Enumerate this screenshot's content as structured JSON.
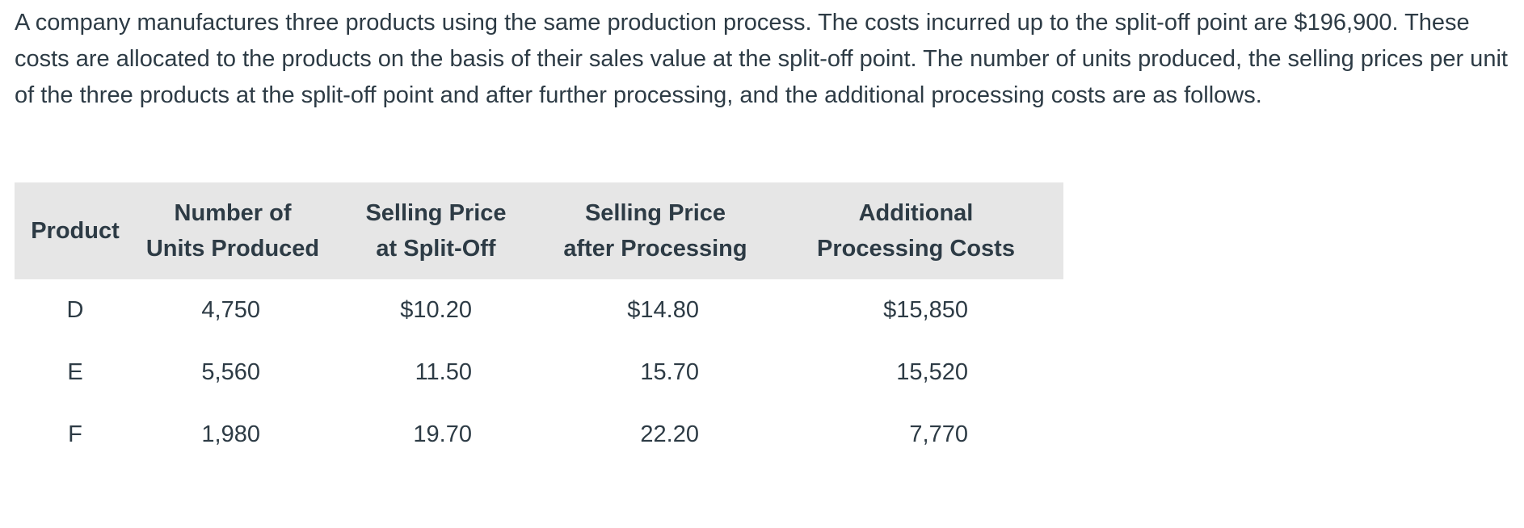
{
  "intro": {
    "text": "A company manufactures three products using the same production process. The costs incurred up to the split-off point are $196,900. These costs are allocated to the products on the basis of their sales value at the split-off point. The number of units produced, the selling prices per unit of the three products at the split-off point and after further processing, and the additional processing costs are as follows."
  },
  "table": {
    "headers": [
      {
        "line1": "",
        "line2": "Product"
      },
      {
        "line1": "Number of",
        "line2": "Units Produced"
      },
      {
        "line1": "Selling Price",
        "line2": "at Split-Off"
      },
      {
        "line1": "Selling Price",
        "line2": "after Processing"
      },
      {
        "line1": "Additional",
        "line2": "Processing Costs"
      }
    ],
    "rows": [
      {
        "product": "D",
        "units": "4,750",
        "split_off": "$10.20",
        "after": "$14.80",
        "additional": "$15,850"
      },
      {
        "product": "E",
        "units": "5,560",
        "split_off": "11.50",
        "after": "15.70",
        "additional": "15,520"
      },
      {
        "product": "F",
        "units": "1,980",
        "split_off": "19.70",
        "after": "22.20",
        "additional": "7,770"
      }
    ]
  },
  "colors": {
    "text": "#2d3b45",
    "header_background": "#e6e6e6",
    "page_background": "#ffffff"
  }
}
